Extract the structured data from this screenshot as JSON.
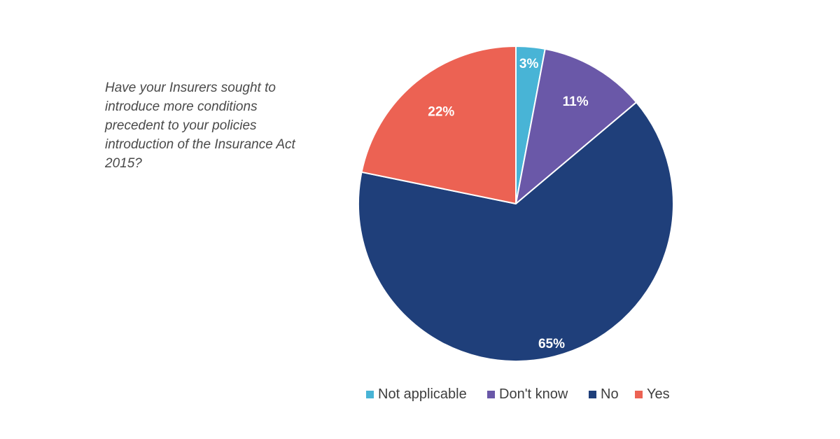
{
  "question": "Have your Insurers sought to introduce more conditions precedent to your policies introduction of the Insurance Act 2015?",
  "chart_data": {
    "type": "pie",
    "title": "",
    "categories": [
      "Not applicable",
      "Don't know",
      "No",
      "Yes"
    ],
    "values": [
      3,
      11,
      65,
      22
    ],
    "value_labels": [
      "3%",
      "11%",
      "65%",
      "22%"
    ],
    "colors": [
      "#48b4d6",
      "#6a58a8",
      "#1f3f7a",
      "#ec6253"
    ],
    "start_angle": "12 o'clock",
    "direction": "clockwise",
    "legend_position": "bottom"
  }
}
